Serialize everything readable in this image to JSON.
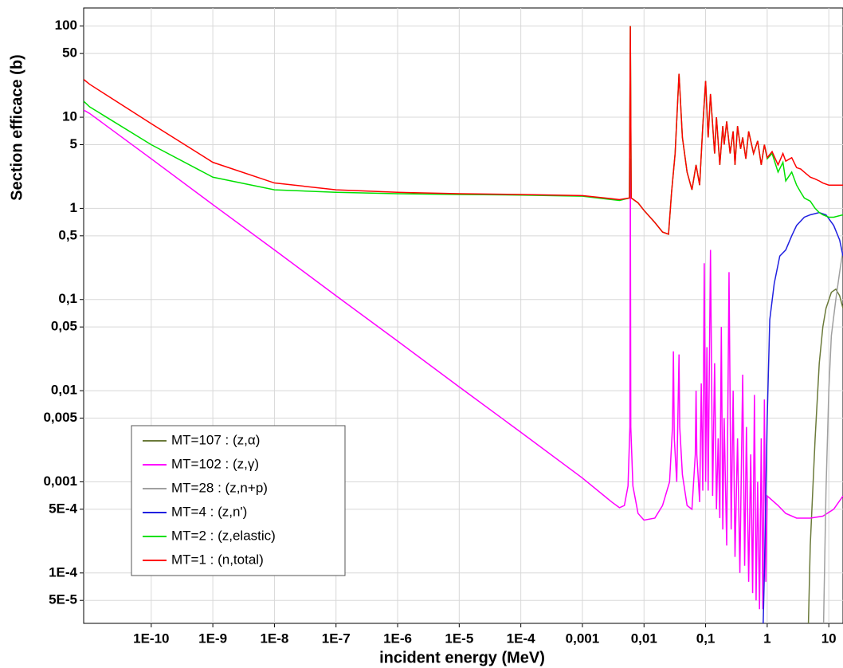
{
  "chart_data": {
    "type": "line",
    "xlabel": "incident energy (MeV)",
    "ylabel": "Section efficace (b)",
    "xscale": "log",
    "yscale": "log",
    "grid": true,
    "legend": "lower left",
    "xlim": [
      8e-12,
      17
    ],
    "ylim": [
      2.8e-05,
      158
    ],
    "xticks": [
      {
        "value": 1e-10,
        "label": "1E-10"
      },
      {
        "value": 1e-09,
        "label": "1E-9"
      },
      {
        "value": 1e-08,
        "label": "1E-8"
      },
      {
        "value": 1e-07,
        "label": "1E-7"
      },
      {
        "value": 1e-06,
        "label": "1E-6"
      },
      {
        "value": 1e-05,
        "label": "1E-5"
      },
      {
        "value": 0.0001,
        "label": "1E-4"
      },
      {
        "value": 0.001,
        "label": "0,001"
      },
      {
        "value": 0.01,
        "label": "0,01"
      },
      {
        "value": 0.1,
        "label": "0,1"
      },
      1,
      10
    ],
    "yticks": [
      100,
      50,
      10,
      5,
      1,
      {
        "value": 0.5,
        "label": "0,5"
      },
      {
        "value": 0.1,
        "label": "0,1"
      },
      {
        "value": 0.05,
        "label": "0,05"
      },
      {
        "value": 0.01,
        "label": "0,01"
      },
      {
        "value": 0.005,
        "label": "0,005"
      },
      {
        "value": 0.001,
        "label": "0,001"
      },
      {
        "value": 0.0005,
        "label": "5E-4"
      },
      {
        "value": 0.0001,
        "label": "1E-4"
      },
      {
        "value": 5e-05,
        "label": "5E-5"
      }
    ],
    "series": [
      {
        "name": "MT=107 : (z,α)",
        "color": "#6b7a3a",
        "x": [
          4.5,
          5,
          6,
          7,
          8,
          9,
          11,
          13,
          15,
          17
        ],
        "values": [
          1e-05,
          0.0002,
          0.003,
          0.02,
          0.05,
          0.08,
          0.12,
          0.13,
          0.11,
          0.08
        ]
      },
      {
        "name": "MT=102 : (z,γ)",
        "color": "#ff00ff",
        "x": [
          8e-12,
          1e-11,
          1e-10,
          1e-09,
          1e-08,
          1e-07,
          1e-06,
          1e-05,
          0.0001,
          0.001,
          0.003,
          0.004,
          0.0048,
          0.0055,
          0.0059,
          0.006,
          0.0061,
          0.0066,
          0.008,
          0.01,
          0.015,
          0.02,
          0.026,
          0.029,
          0.03,
          0.031,
          0.034,
          0.037,
          0.038,
          0.042,
          0.05,
          0.06,
          0.068,
          0.07,
          0.072,
          0.08,
          0.085,
          0.09,
          0.095,
          0.1,
          0.105,
          0.11,
          0.12,
          0.13,
          0.14,
          0.15,
          0.16,
          0.17,
          0.18,
          0.19,
          0.2,
          0.22,
          0.24,
          0.26,
          0.28,
          0.3,
          0.33,
          0.36,
          0.4,
          0.43,
          0.46,
          0.5,
          0.54,
          0.58,
          0.62,
          0.66,
          0.7,
          0.75,
          0.8,
          0.85,
          0.9,
          0.95,
          1,
          1.5,
          2,
          3,
          5,
          8,
          12,
          17
        ],
        "values": [
          12,
          11,
          3.5,
          1.1,
          0.35,
          0.11,
          0.035,
          0.011,
          0.0035,
          0.0011,
          0.0006,
          0.00052,
          0.00055,
          0.0009,
          0.004,
          3.5,
          0.004,
          0.0009,
          0.00045,
          0.00038,
          0.0004,
          0.00055,
          0.001,
          0.004,
          0.027,
          0.003,
          0.001,
          0.025,
          0.004,
          0.0012,
          0.00055,
          0.0005,
          0.002,
          0.01,
          0.002,
          0.0006,
          0.012,
          0.0008,
          0.25,
          0.001,
          0.03,
          0.0008,
          0.35,
          0.0007,
          0.02,
          0.0005,
          0.003,
          0.0004,
          0.05,
          0.0003,
          0.005,
          0.0002,
          0.2,
          0.0003,
          0.01,
          0.00015,
          0.003,
          0.0001,
          0.015,
          0.00012,
          0.004,
          8e-05,
          0.002,
          6e-05,
          0.009,
          5e-05,
          0.001,
          4e-05,
          0.003,
          4e-05,
          0.008,
          8e-05,
          0.0007,
          0.00055,
          0.00045,
          0.0004,
          0.0004,
          0.00042,
          0.0005,
          0.0007
        ]
      },
      {
        "name": "MT=28 : (z,n+p)",
        "color": "#a0a0a0",
        "x": [
          8,
          9,
          10,
          11,
          13,
          15,
          17
        ],
        "values": [
          1e-05,
          0.0008,
          0.01,
          0.04,
          0.1,
          0.2,
          0.35
        ]
      },
      {
        "name": "MT=4 : (z,n')",
        "color": "#2020e0",
        "x": [
          0.85,
          0.9,
          1,
          1.1,
          1.3,
          1.6,
          2,
          2.5,
          3,
          4,
          5,
          7,
          9,
          12,
          15,
          17
        ],
        "values": [
          2e-05,
          0.0001,
          0.005,
          0.06,
          0.15,
          0.3,
          0.35,
          0.5,
          0.65,
          0.8,
          0.85,
          0.9,
          0.85,
          0.65,
          0.45,
          0.3
        ]
      },
      {
        "name": "MT=2 : (z,elastic)",
        "color": "#00e000",
        "x": [
          8e-12,
          1e-11,
          1e-10,
          1e-09,
          1e-08,
          1e-07,
          1e-06,
          1e-05,
          0.0001,
          0.001,
          0.004,
          0.0058,
          0.006,
          0.0062,
          0.008,
          0.01,
          0.015,
          0.02,
          0.025,
          0.028,
          0.032,
          0.037,
          0.042,
          0.05,
          0.06,
          0.07,
          0.08,
          0.09,
          0.1,
          0.11,
          0.12,
          0.14,
          0.15,
          0.17,
          0.19,
          0.2,
          0.22,
          0.25,
          0.28,
          0.3,
          0.33,
          0.37,
          0.4,
          0.45,
          0.5,
          0.6,
          0.7,
          0.8,
          0.9,
          1,
          1.2,
          1.5,
          1.8,
          2,
          2.5,
          3,
          3.5,
          4,
          5,
          6,
          7,
          8,
          10,
          12,
          17
        ],
        "values": [
          15,
          13,
          5,
          2.2,
          1.6,
          1.5,
          1.45,
          1.42,
          1.4,
          1.36,
          1.22,
          1.3,
          100,
          1.3,
          1.15,
          0.95,
          0.7,
          0.55,
          0.52,
          1.5,
          4,
          30,
          6,
          2.5,
          1.6,
          3,
          1.8,
          8,
          25,
          6,
          18,
          4,
          10,
          3,
          8,
          5,
          9,
          4,
          7,
          3,
          8,
          4.5,
          6,
          3.5,
          7,
          4,
          5.5,
          3,
          5,
          3.5,
          4,
          2.5,
          3.2,
          2,
          2.5,
          1.8,
          1.5,
          1.3,
          1.2,
          1,
          0.9,
          0.85,
          0.8,
          0.8,
          0.85
        ]
      },
      {
        "name": "MT=1 : (n,total)",
        "color": "#ff0000",
        "x": [
          8e-12,
          1e-11,
          1e-10,
          1e-09,
          1e-08,
          1e-07,
          1e-06,
          1e-05,
          0.0001,
          0.001,
          0.004,
          0.0058,
          0.006,
          0.0062,
          0.008,
          0.01,
          0.015,
          0.02,
          0.025,
          0.028,
          0.032,
          0.037,
          0.042,
          0.05,
          0.06,
          0.07,
          0.08,
          0.09,
          0.1,
          0.11,
          0.12,
          0.14,
          0.15,
          0.17,
          0.19,
          0.2,
          0.22,
          0.25,
          0.28,
          0.3,
          0.33,
          0.37,
          0.4,
          0.45,
          0.5,
          0.6,
          0.7,
          0.8,
          0.9,
          1,
          1.2,
          1.5,
          1.8,
          2,
          2.5,
          3,
          3.5,
          4,
          5,
          6,
          7,
          8,
          10,
          12,
          17
        ],
        "values": [
          26,
          23,
          8.5,
          3.2,
          1.9,
          1.6,
          1.5,
          1.45,
          1.42,
          1.38,
          1.25,
          1.3,
          100,
          1.3,
          1.15,
          0.95,
          0.7,
          0.55,
          0.52,
          1.5,
          4,
          30,
          6,
          2.5,
          1.6,
          3,
          1.8,
          8,
          25,
          6,
          18,
          4,
          10,
          3,
          8,
          5,
          9,
          4,
          7,
          3,
          8,
          4.5,
          6,
          3.5,
          7,
          4,
          5.5,
          3,
          5,
          3.6,
          4.2,
          3,
          4,
          3.3,
          3.6,
          2.8,
          2.7,
          2.5,
          2.2,
          2.1,
          2,
          1.9,
          1.8,
          1.8,
          1.8
        ]
      }
    ]
  }
}
